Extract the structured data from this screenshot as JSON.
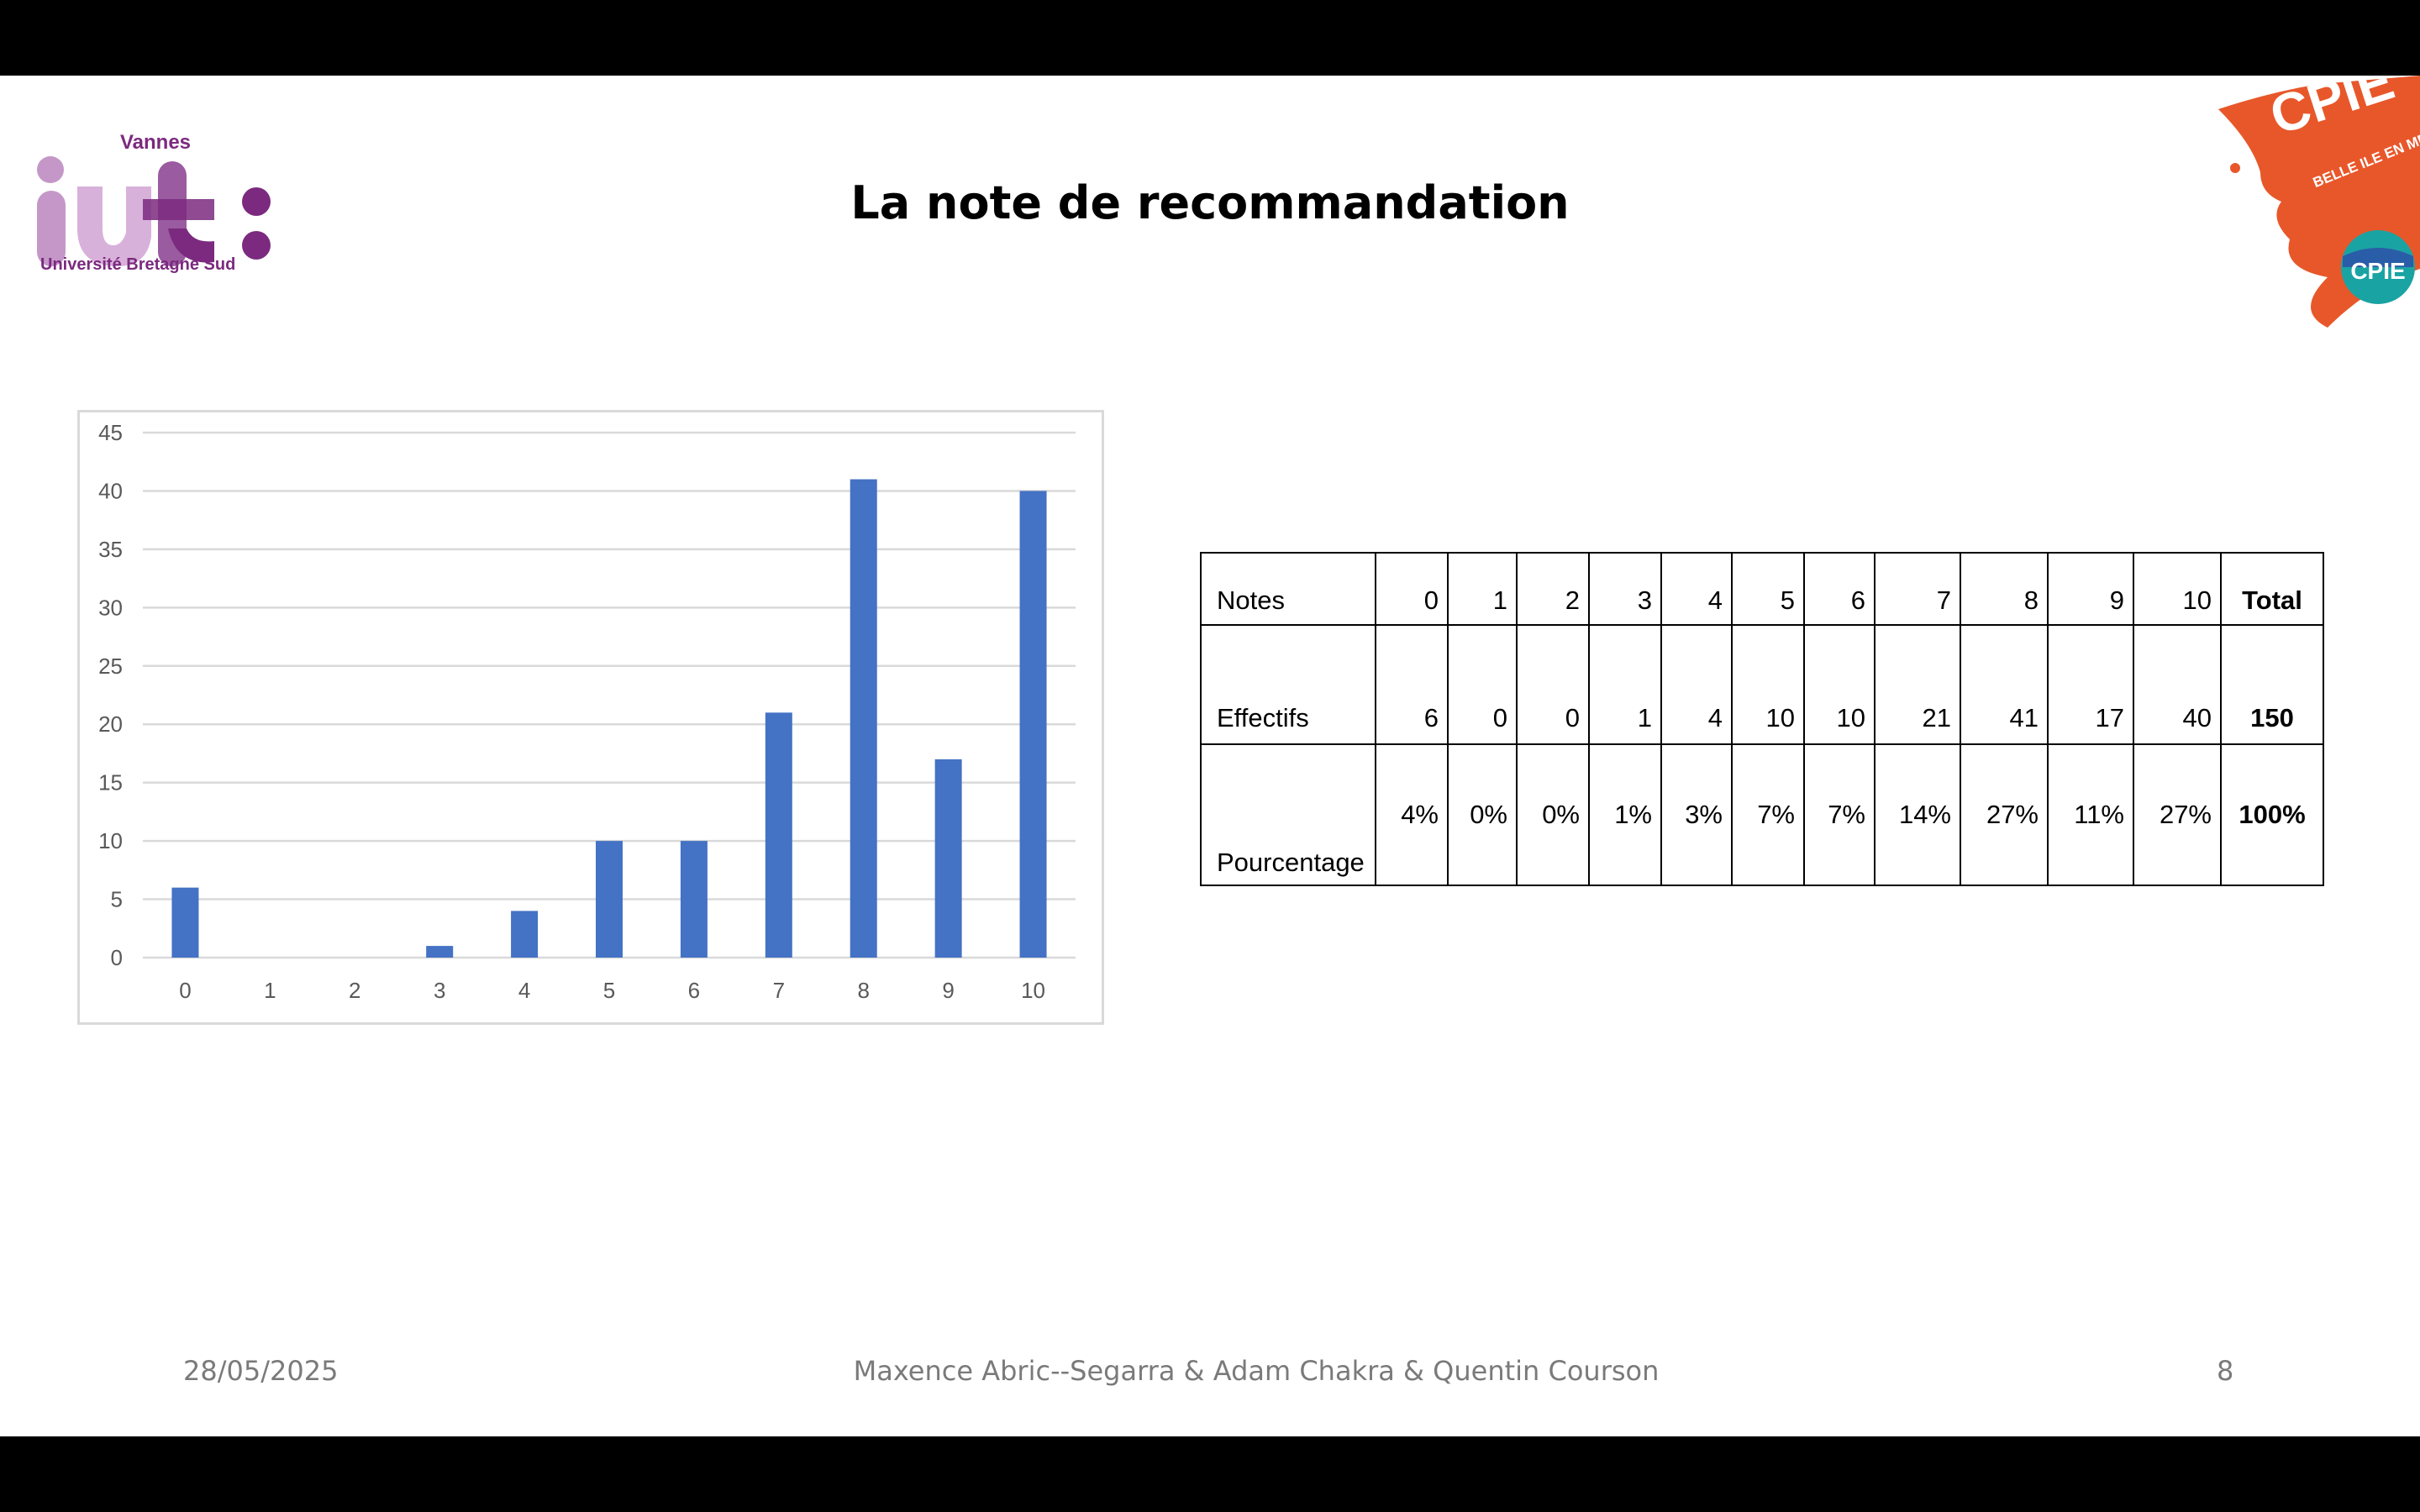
{
  "slide": {
    "title": "La note de recommandation",
    "footer": {
      "date": "28/05/2025",
      "authors": "Maxence Abric--Segarra & Adam Chakra & Quentin Courson",
      "page": "8"
    },
    "logos": {
      "left": {
        "top_text": "Vannes",
        "main_text": "iut",
        "bottom_text": "Université Bretagne Sud",
        "color": "#7b2a7f"
      },
      "right": {
        "main_text": "CPIE",
        "sub_text": "BELLE ILE EN MER",
        "color": "#e8572a"
      }
    }
  },
  "chart_data": {
    "type": "bar",
    "categories": [
      "0",
      "1",
      "2",
      "3",
      "4",
      "5",
      "6",
      "7",
      "8",
      "9",
      "10"
    ],
    "values": [
      6,
      0,
      0,
      1,
      4,
      10,
      10,
      21,
      41,
      17,
      40
    ],
    "ylim": [
      0,
      45
    ],
    "yticks": [
      0,
      5,
      10,
      15,
      20,
      25,
      30,
      35,
      40,
      45
    ],
    "grid": true,
    "bar_color": "#4472c4",
    "title": "",
    "xlabel": "",
    "ylabel": ""
  },
  "table": {
    "rows": [
      {
        "label": "Notes",
        "cells": [
          "0",
          "1",
          "2",
          "3",
          "4",
          "5",
          "6",
          "7",
          "8",
          "9",
          "10"
        ],
        "total": "Total"
      },
      {
        "label": "Effectifs",
        "cells": [
          "6",
          "0",
          "0",
          "1",
          "4",
          "10",
          "10",
          "21",
          "41",
          "17",
          "40"
        ],
        "total": "150"
      },
      {
        "label": "Pourcentage",
        "cells": [
          "4%",
          "0%",
          "0%",
          "1%",
          "3%",
          "7%",
          "7%",
          "14%",
          "27%",
          "11%",
          "27%"
        ],
        "total": "100%"
      }
    ]
  }
}
